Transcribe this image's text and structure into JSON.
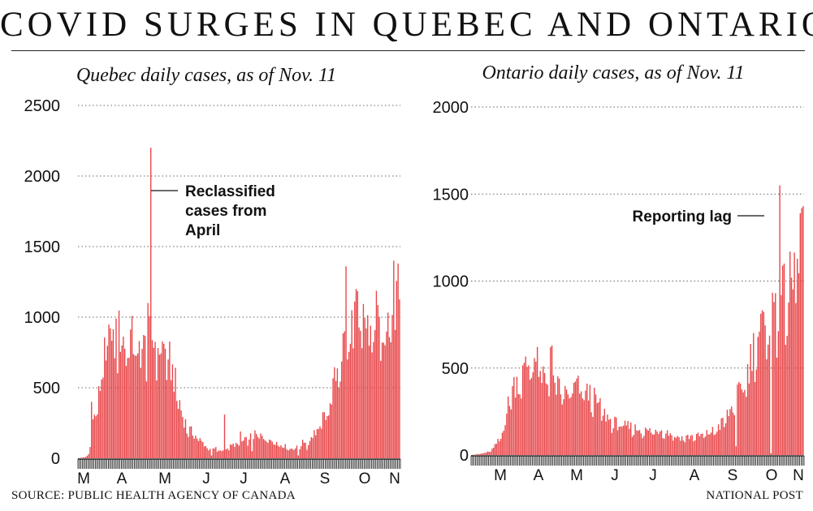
{
  "headline": "COVID SURGES IN QUEBEC AND ONTARIO",
  "source": "SOURCE: PUBLIC HEALTH AGENCY OF CANADA",
  "credit": "NATIONAL POST",
  "colors": {
    "bar": "#e8474a",
    "bar_stroke": "#c62f33",
    "grid": "#666666",
    "axis": "#111111"
  },
  "chart_data": [
    {
      "type": "bar",
      "title": "Quebec daily cases, as of Nov. 11",
      "xlabel": "",
      "ylabel": "",
      "ylim": [
        0,
        2500
      ],
      "yticks": [
        0,
        500,
        1000,
        1500,
        2000,
        2500
      ],
      "grid": true,
      "x_tick_labels": [
        "M",
        "A",
        "M",
        "J",
        "J",
        "A",
        "S",
        "O",
        "N"
      ],
      "annotations": [
        {
          "lines": [
            "Reclassified",
            "cases from",
            "April"
          ],
          "points_to": "2200-case spike, early May"
        }
      ],
      "anchors": [
        [
          0,
          0
        ],
        [
          5,
          10
        ],
        [
          7,
          30
        ],
        [
          8,
          80
        ],
        [
          9,
          400
        ],
        [
          11,
          300
        ],
        [
          14,
          450
        ],
        [
          17,
          650
        ],
        [
          20,
          850
        ],
        [
          24,
          780
        ],
        [
          28,
          900
        ],
        [
          32,
          830
        ],
        [
          36,
          870
        ],
        [
          40,
          800
        ],
        [
          45,
          780
        ],
        [
          50,
          860
        ],
        [
          55,
          820
        ],
        [
          60,
          780
        ],
        [
          63,
          700
        ],
        [
          66,
          580
        ],
        [
          69,
          450
        ],
        [
          72,
          300
        ],
        [
          76,
          210
        ],
        [
          80,
          170
        ],
        [
          84,
          130
        ],
        [
          88,
          90
        ],
        [
          92,
          70
        ],
        [
          96,
          60
        ],
        [
          100,
          55
        ],
        [
          104,
          80
        ],
        [
          108,
          100
        ],
        [
          112,
          110
        ],
        [
          116,
          130
        ],
        [
          120,
          160
        ],
        [
          124,
          170
        ],
        [
          128,
          150
        ],
        [
          132,
          140
        ],
        [
          136,
          120
        ],
        [
          140,
          100
        ],
        [
          144,
          80
        ],
        [
          148,
          70
        ],
        [
          152,
          80
        ],
        [
          156,
          120
        ],
        [
          160,
          150
        ],
        [
          164,
          190
        ],
        [
          168,
          250
        ],
        [
          172,
          350
        ],
        [
          176,
          500
        ],
        [
          180,
          700
        ],
        [
          184,
          850
        ],
        [
          188,
          950
        ],
        [
          192,
          1020
        ],
        [
          196,
          980
        ],
        [
          200,
          970
        ],
        [
          204,
          1000
        ],
        [
          208,
          1050
        ],
        [
          212,
          1000
        ],
        [
          216,
          1050
        ],
        [
          222,
          1150
        ]
      ],
      "spikes": [
        [
          50,
          2200
        ],
        [
          48,
          1100
        ],
        [
          26,
          990
        ],
        [
          22,
          920
        ],
        [
          82,
          140
        ],
        [
          95,
          80
        ],
        [
          101,
          310
        ],
        [
          112,
          190
        ],
        [
          185,
          1360
        ],
        [
          192,
          1200
        ],
        [
          218,
          1400
        ],
        [
          221,
          1380
        ]
      ],
      "dips": [
        [
          92,
          20
        ],
        [
          120,
          50
        ],
        [
          152,
          20
        ],
        [
          158,
          60
        ],
        [
          186,
          700
        ],
        [
          196,
          780
        ],
        [
          203,
          750
        ],
        [
          210,
          820
        ]
      ],
      "n_days": 223
    },
    {
      "type": "bar",
      "title": "Ontario daily cases, as of Nov. 11",
      "xlabel": "",
      "ylabel": "",
      "ylim": [
        0,
        2000
      ],
      "yticks": [
        0,
        500,
        1000,
        1500,
        2000
      ],
      "grid": true,
      "x_tick_labels": [
        "M",
        "A",
        "M",
        "J",
        "J",
        "A",
        "S",
        "O",
        "N"
      ],
      "annotations": [
        {
          "lines": [
            "Reporting lag"
          ],
          "points_to": "1550-case spike, mid-October"
        }
      ],
      "anchors": [
        [
          0,
          0
        ],
        [
          8,
          10
        ],
        [
          12,
          20
        ],
        [
          15,
          40
        ],
        [
          18,
          80
        ],
        [
          21,
          130
        ],
        [
          24,
          250
        ],
        [
          27,
          380
        ],
        [
          30,
          420
        ],
        [
          34,
          460
        ],
        [
          38,
          520
        ],
        [
          42,
          580
        ],
        [
          46,
          510
        ],
        [
          50,
          450
        ],
        [
          54,
          390
        ],
        [
          58,
          400
        ],
        [
          62,
          360
        ],
        [
          66,
          350
        ],
        [
          70,
          400
        ],
        [
          74,
          390
        ],
        [
          78,
          360
        ],
        [
          82,
          350
        ],
        [
          86,
          300
        ],
        [
          90,
          250
        ],
        [
          95,
          200
        ],
        [
          100,
          180
        ],
        [
          105,
          170
        ],
        [
          110,
          160
        ],
        [
          115,
          150
        ],
        [
          120,
          140
        ],
        [
          125,
          140
        ],
        [
          130,
          150
        ],
        [
          135,
          130
        ],
        [
          140,
          110
        ],
        [
          145,
          100
        ],
        [
          150,
          110
        ],
        [
          155,
          110
        ],
        [
          160,
          120
        ],
        [
          165,
          140
        ],
        [
          170,
          170
        ],
        [
          175,
          230
        ],
        [
          180,
          300
        ],
        [
          185,
          400
        ],
        [
          188,
          450
        ],
        [
          192,
          600
        ],
        [
          196,
          700
        ],
        [
          200,
          750
        ],
        [
          204,
          800
        ],
        [
          208,
          850
        ],
        [
          212,
          900
        ],
        [
          216,
          950
        ],
        [
          220,
          1000
        ],
        [
          223,
          1200
        ],
        [
          226,
          1420
        ]
      ],
      "spikes": [
        [
          211,
          1550
        ],
        [
          54,
          620
        ],
        [
          55,
          630
        ],
        [
          208,
          930
        ],
        [
          225,
          1390
        ],
        [
          226,
          1420
        ]
      ],
      "dips": [
        [
          181,
          50
        ],
        [
          205,
          10
        ],
        [
          209,
          560
        ]
      ],
      "n_days": 228
    }
  ]
}
